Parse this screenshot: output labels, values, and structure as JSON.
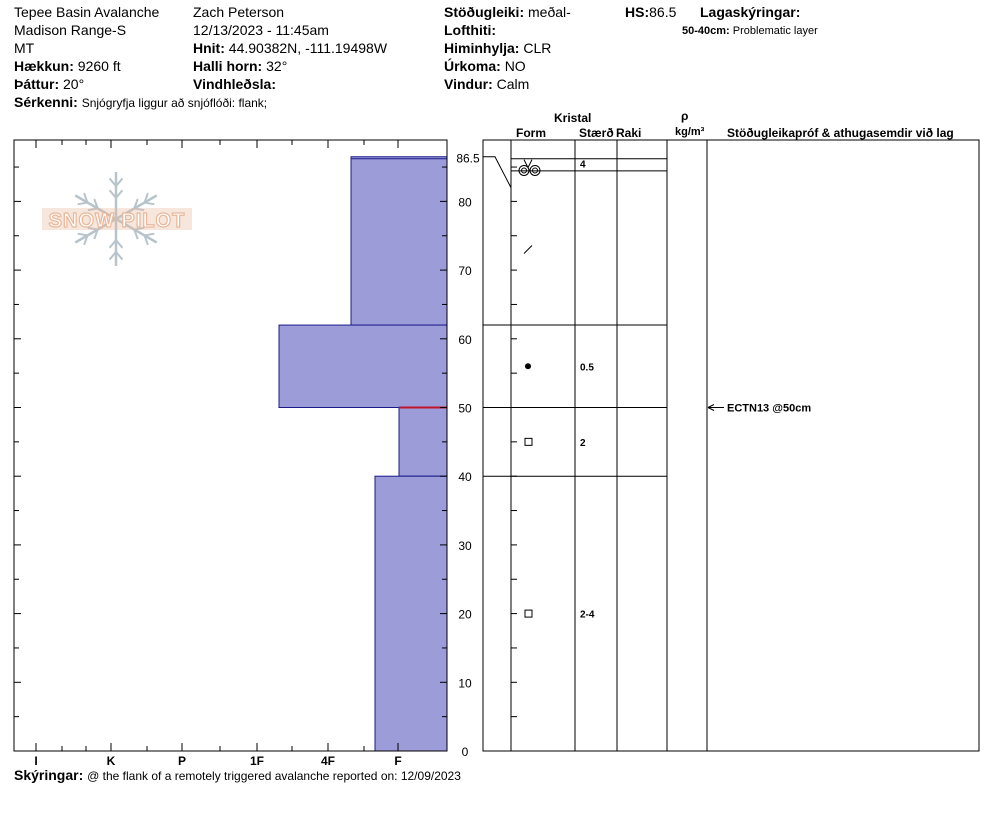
{
  "header": {
    "location": "Tepee Basin Avalanche",
    "range": "Madison Range-S",
    "state": "MT",
    "elevation_label": "Hækkun:",
    "elevation_value": "9260 ft",
    "aspect_label": "Þáttur:",
    "aspect_value": "20°",
    "features_label": "Sérkenni:",
    "features_value": "Snjógryfja liggur að snjóflóði: flank;",
    "observer": "Zach Peterson",
    "datetime": "12/13/2023 - 11:45am",
    "coords_label": "Hnit:",
    "coords_value": "44.90382N, -111.19498W",
    "slope_label": "Halli horn:",
    "slope_value": "32°",
    "wind_loading_label": "Vindhleðsla:",
    "wind_loading_value": "",
    "stability_label": "Stöðugleiki:",
    "stability_value": "meðal-",
    "air_temp_label": "Lofthiti:",
    "air_temp_value": "",
    "sky_label": "Himinhylja:",
    "sky_value": "CLR",
    "precip_label": "Úrkoma:",
    "precip_value": "NO",
    "wind_label": "Vindur:",
    "wind_value": "Calm",
    "hs_label": "HS:",
    "hs_value": "86.5",
    "layer_notes_label": "Lagaskýringar:",
    "layer_note_range": "50-40cm:",
    "layer_note_text": "Problematic layer"
  },
  "columns": {
    "crystal_header": "Kristal",
    "form_header": "Form",
    "size_header": "Stærð",
    "moisture_header": "Raki",
    "density_symbol": "ρ",
    "density_unit": "kg/m³",
    "tests_header": "Stöðugleikapróf & athugasemdir við lag"
  },
  "logo_text": "SNOW PILOT",
  "footer": {
    "label": "Skýringar:",
    "text": "@ the flank of a remotely triggered avalanche reported on: 12/09/2023"
  },
  "colors": {
    "hardness_fill": "#9c9cd8",
    "hardness_stroke": "#1a1a8c",
    "weak_layer": "#c0142c",
    "logo": "#e8b89a",
    "flake": "#b8c4cc"
  },
  "chart_data": {
    "type": "bar",
    "orientation": "horizontal",
    "title": "",
    "xlabel": "",
    "ylabel": "",
    "x_categories": [
      "I",
      "K",
      "P",
      "1F",
      "4F",
      "F"
    ],
    "ylim": [
      0,
      86.5
    ],
    "y_ticks": [
      0,
      10,
      20,
      30,
      40,
      50,
      60,
      70,
      80
    ],
    "hs_tick": "86.5",
    "hardness_layers": [
      {
        "top": 86.5,
        "bottom": 62,
        "hardness": "4F-"
      },
      {
        "top": 62,
        "bottom": 50,
        "hardness": "1F-"
      },
      {
        "top": 50,
        "bottom": 40,
        "hardness": "F+"
      },
      {
        "top": 40,
        "bottom": 0,
        "hardness": "F-"
      }
    ],
    "layer_boundaries": [
      86.5,
      84,
      62,
      50,
      40
    ],
    "weak_layer_depth": 50,
    "crystals": [
      {
        "depth": 85.5,
        "form": "surface-hoar",
        "size": "4"
      },
      {
        "depth": 84.5,
        "form": "melt-form",
        "size": ""
      },
      {
        "depth": 73,
        "form": "decomposing",
        "size": ""
      },
      {
        "depth": 56,
        "form": "rounded",
        "size": "0.5"
      },
      {
        "depth": 45,
        "form": "faceted",
        "size": "2"
      },
      {
        "depth": 20,
        "form": "faceted",
        "size": "2-4"
      }
    ],
    "test_results": [
      {
        "depth": 50,
        "label": "ECTN13 @50cm"
      }
    ]
  }
}
